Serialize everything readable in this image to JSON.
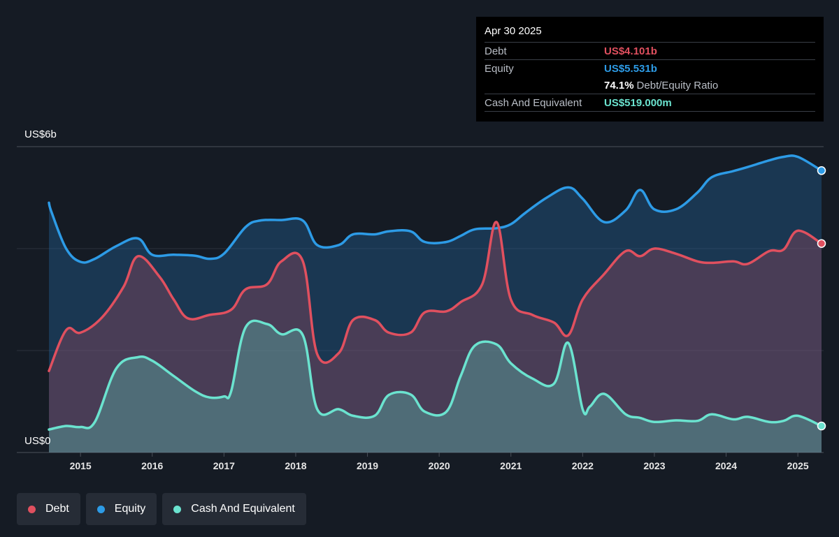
{
  "tooltip": {
    "date": "Apr 30 2025",
    "debt_label": "Debt",
    "debt_value": "US$4.101b",
    "equity_label": "Equity",
    "equity_value": "US$5.531b",
    "ratio_value": "74.1%",
    "ratio_label": "Debt/Equity Ratio",
    "cash_label": "Cash And Equivalent",
    "cash_value": "US$519.000m"
  },
  "legend": {
    "debt": "Debt",
    "equity": "Equity",
    "cash": "Cash And Equivalent"
  },
  "colors": {
    "debt": "#e0505f",
    "equity": "#2d9be6",
    "cash": "#6be3cf",
    "background": "#151b24"
  },
  "chart_data": {
    "type": "area",
    "y_axis_labels": [
      "US$6b",
      "US$0"
    ],
    "ylim": [
      0,
      6
    ],
    "y_unit": "US$ billions",
    "x_ticks": [
      "2015",
      "2016",
      "2017",
      "2018",
      "2019",
      "2020",
      "2021",
      "2022",
      "2023",
      "2024",
      "2025"
    ],
    "x_tick_values": [
      2015,
      2016,
      2017,
      2018,
      2019,
      2020,
      2021,
      2022,
      2023,
      2024,
      2025
    ],
    "xlim": [
      2014.56,
      2025.33
    ],
    "grid": true,
    "legend_placement": "bottom-left",
    "series": [
      {
        "name": "Equity",
        "key": "equity",
        "x": [
          2014.56,
          2014.6,
          2014.8,
          2015.0,
          2015.2,
          2015.5,
          2015.8,
          2016.0,
          2016.3,
          2016.6,
          2016.8,
          2017.0,
          2017.3,
          2017.5,
          2017.8,
          2018.1,
          2018.3,
          2018.6,
          2018.8,
          2019.1,
          2019.3,
          2019.6,
          2019.8,
          2020.1,
          2020.3,
          2020.5,
          2020.8,
          2021.0,
          2021.2,
          2021.5,
          2021.8,
          2022.0,
          2022.3,
          2022.6,
          2022.8,
          2023.0,
          2023.3,
          2023.6,
          2023.8,
          2024.1,
          2024.3,
          2024.6,
          2024.8,
          2025.0,
          2025.33
        ],
        "values": [
          4.9,
          4.7,
          4.0,
          3.74,
          3.8,
          4.05,
          4.2,
          3.88,
          3.88,
          3.86,
          3.8,
          3.9,
          4.42,
          4.55,
          4.56,
          4.55,
          4.07,
          4.07,
          4.28,
          4.28,
          4.34,
          4.34,
          4.13,
          4.13,
          4.25,
          4.38,
          4.4,
          4.48,
          4.7,
          5.0,
          5.2,
          4.98,
          4.52,
          4.75,
          5.15,
          4.77,
          4.77,
          5.1,
          5.4,
          5.52,
          5.6,
          5.73,
          5.8,
          5.8,
          5.53
        ]
      },
      {
        "name": "Debt",
        "key": "debt",
        "x": [
          2014.56,
          2014.8,
          2015.0,
          2015.3,
          2015.6,
          2015.8,
          2016.1,
          2016.3,
          2016.5,
          2016.8,
          2017.1,
          2017.3,
          2017.6,
          2017.8,
          2018.1,
          2018.3,
          2018.6,
          2018.8,
          2019.1,
          2019.3,
          2019.6,
          2019.8,
          2020.1,
          2020.3,
          2020.6,
          2020.8,
          2021.0,
          2021.3,
          2021.6,
          2021.8,
          2022.0,
          2022.3,
          2022.6,
          2022.8,
          2023.0,
          2023.3,
          2023.6,
          2023.8,
          2024.1,
          2024.3,
          2024.6,
          2024.8,
          2025.0,
          2025.33
        ],
        "values": [
          1.6,
          2.4,
          2.35,
          2.65,
          3.25,
          3.85,
          3.45,
          3.0,
          2.63,
          2.7,
          2.8,
          3.2,
          3.3,
          3.75,
          3.75,
          1.93,
          1.95,
          2.6,
          2.6,
          2.35,
          2.35,
          2.75,
          2.77,
          2.95,
          3.3,
          4.52,
          3.0,
          2.7,
          2.55,
          2.3,
          3.0,
          3.5,
          3.95,
          3.85,
          4.0,
          3.9,
          3.75,
          3.72,
          3.75,
          3.7,
          3.95,
          3.98,
          4.35,
          4.1
        ]
      },
      {
        "name": "Cash And Equivalent",
        "key": "cash",
        "x": [
          2014.56,
          2014.8,
          2015.0,
          2015.2,
          2015.5,
          2015.8,
          2016.0,
          2016.3,
          2016.6,
          2016.8,
          2017.0,
          2017.1,
          2017.3,
          2017.6,
          2017.8,
          2018.1,
          2018.3,
          2018.6,
          2018.8,
          2019.1,
          2019.3,
          2019.6,
          2019.8,
          2020.1,
          2020.3,
          2020.5,
          2020.8,
          2021.0,
          2021.3,
          2021.6,
          2021.8,
          2022.0,
          2022.1,
          2022.3,
          2022.6,
          2022.8,
          2023.0,
          2023.3,
          2023.6,
          2023.8,
          2024.1,
          2024.3,
          2024.6,
          2024.8,
          2025.0,
          2025.33
        ],
        "values": [
          0.45,
          0.52,
          0.5,
          0.6,
          1.65,
          1.87,
          1.8,
          1.5,
          1.2,
          1.08,
          1.1,
          1.2,
          2.45,
          2.52,
          2.32,
          2.3,
          0.85,
          0.85,
          0.72,
          0.72,
          1.13,
          1.14,
          0.8,
          0.8,
          1.5,
          2.1,
          2.12,
          1.75,
          1.45,
          1.35,
          2.15,
          0.85,
          0.9,
          1.15,
          0.75,
          0.68,
          0.6,
          0.63,
          0.62,
          0.75,
          0.65,
          0.7,
          0.6,
          0.62,
          0.72,
          0.52
        ]
      }
    ]
  }
}
